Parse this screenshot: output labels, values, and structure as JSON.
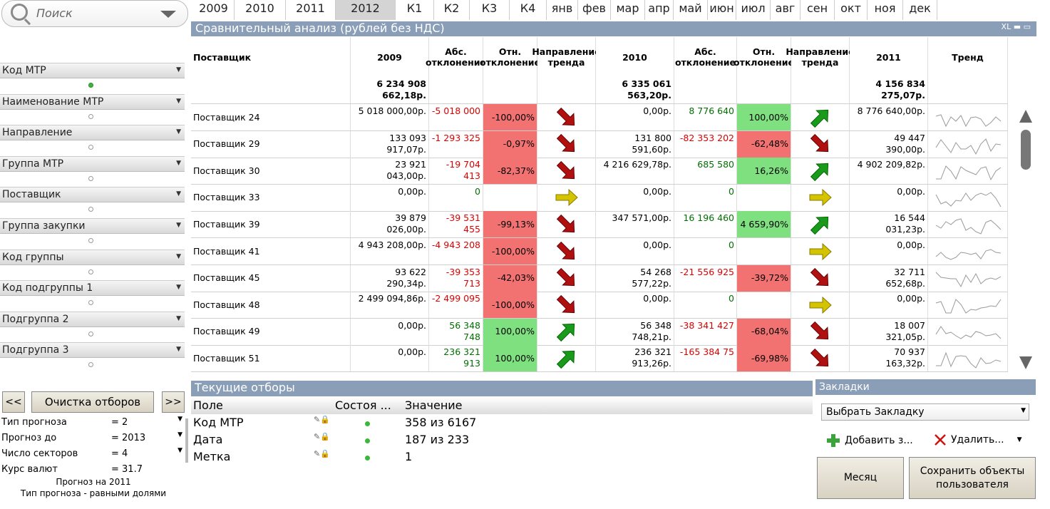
{
  "search": {
    "placeholder": "Поиск"
  },
  "filters": [
    {
      "label": "Код МТР",
      "active": true
    },
    {
      "label": "Наименование МТР",
      "active": false
    },
    {
      "label": "Направление",
      "active": false
    },
    {
      "label": "Группа МТР",
      "active": false
    },
    {
      "label": "Поставщик",
      "active": false
    },
    {
      "label": "Группа закупки",
      "active": false
    },
    {
      "label": "Код группы",
      "active": false
    },
    {
      "label": "Код подгруппы 1",
      "active": false
    },
    {
      "label": "Подгруппа 2",
      "active": false
    },
    {
      "label": "Подгруппа 3",
      "active": false
    }
  ],
  "nav": {
    "prev": "<<",
    "clear": "Очистка отборов",
    "next": ">>"
  },
  "forecast": [
    {
      "k": "Тип прогноза",
      "v": "= 2"
    },
    {
      "k": "Прогноз до",
      "v": "= 2013"
    },
    {
      "k": "Число секторов",
      "v": "= 4"
    },
    {
      "k": "Курс валют",
      "v": "= 31.7"
    }
  ],
  "forecast_note1": "Прогноз на 2011",
  "forecast_note2": "Тип прогноза - равными долями",
  "tabs": [
    "2009",
    "2010",
    "2011",
    "2012",
    "К1",
    "К2",
    "К3",
    "К4",
    "янв",
    "фев",
    "мар",
    "апр",
    "май",
    "июн",
    "июл",
    "авг",
    "сен",
    "окт",
    "ноя",
    "дек"
  ],
  "selected_tab": "2012",
  "table": {
    "title": "Сравнительный анализ (рублей без НДС)",
    "controls": "XL ▬ ▭",
    "headers": [
      "Поставщик",
      "2009",
      "Абс. отклонение",
      "Отн. отклонение",
      "Направление тренда",
      "2010",
      "Абс. отклонение",
      "Отн. отклонение",
      "Направление тренда",
      "2011",
      "Тренд"
    ],
    "totals": {
      "y2009": "6 234 908 662,18р.",
      "y2010": "6 335 061 563,20р.",
      "y2011": "4 156 834 275,07р."
    },
    "rows": [
      {
        "name": "Поставщик 24",
        "y2009": "5 018 000,00р.",
        "abs1": "-5 018 000",
        "rel1": "-100,00%",
        "dir1": "down",
        "y2010": "0,00р.",
        "abs2": "8 776 640",
        "rel2": "100,00%",
        "dir2": "up",
        "y2011": "8 776 640,00р."
      },
      {
        "name": "Поставщик 29",
        "y2009": "133 093 917,07р.",
        "abs1": "-1 293 325",
        "rel1": "-0,97%",
        "dir1": "down",
        "y2010": "131 800 591,60р.",
        "abs2": "-82 353 202",
        "rel2": "-62,48%",
        "dir2": "down",
        "y2011": "49 447 390,00р."
      },
      {
        "name": "Поставщик 30",
        "y2009": "23 921 043,00р.",
        "abs1": "-19 704 413",
        "rel1": "-82,37%",
        "dir1": "down",
        "y2010": "4 216 629,78р.",
        "abs2": "685 580",
        "rel2": "16,26%",
        "dir2": "up",
        "y2011": "4 902 209,82р."
      },
      {
        "name": "Поставщик 33",
        "y2009": "0,00р.",
        "abs1": "0",
        "rel1": "",
        "dir1": "flat",
        "y2010": "0,00р.",
        "abs2": "0",
        "rel2": "",
        "dir2": "flat",
        "y2011": "0,00р."
      },
      {
        "name": "Поставщик 39",
        "y2009": "39 879 026,00р.",
        "abs1": "-39 531 455",
        "rel1": "-99,13%",
        "dir1": "down",
        "y2010": "347 571,00р.",
        "abs2": "16 196 460",
        "rel2": "4 659,90%",
        "dir2": "up",
        "y2011": "16 544 031,23р."
      },
      {
        "name": "Поставщик 41",
        "y2009": "4 943 208,00р.",
        "abs1": "-4 943 208",
        "rel1": "-100,00%",
        "dir1": "down",
        "y2010": "0,00р.",
        "abs2": "0",
        "rel2": "",
        "dir2": "flat",
        "y2011": "0,00р."
      },
      {
        "name": "Поставщик 45",
        "y2009": "93 622 290,34р.",
        "abs1": "-39 353 713",
        "rel1": "-42,03%",
        "dir1": "down",
        "y2010": "54 268 577,22р.",
        "abs2": "-21 556 925",
        "rel2": "-39,72%",
        "dir2": "down",
        "y2011": "32 711 652,68р."
      },
      {
        "name": "Поставщик 48",
        "y2009": "2 499 094,86р.",
        "abs1": "-2 499 095",
        "rel1": "-100,00%",
        "dir1": "down",
        "y2010": "0,00р.",
        "abs2": "0",
        "rel2": "",
        "dir2": "flat",
        "y2011": "0,00р."
      },
      {
        "name": "Поставщик 49",
        "y2009": "0,00р.",
        "abs1": "56 348 748",
        "rel1": "100,00%",
        "dir1": "up",
        "y2010": "56 348 748,21р.",
        "abs2": "-38 341 427",
        "rel2": "-68,04%",
        "dir2": "down",
        "y2011": "18 007 321,05р."
      },
      {
        "name": "Поставщик 51",
        "y2009": "0,00р.",
        "abs1": "236 321 913",
        "rel1": "100,00%",
        "dir1": "up",
        "y2010": "236 321 913,26р.",
        "abs2": "-165 384 75",
        "rel2": "-69,98%",
        "dir2": "down",
        "y2011": "70 937 163,32р."
      }
    ]
  },
  "current": {
    "title": "Текущие отборы",
    "headers": [
      "Поле",
      "Состоя ...",
      "Значение"
    ],
    "rows": [
      {
        "field": "Код МТР",
        "value": "358 из 6167"
      },
      {
        "field": "Дата",
        "value": "187 из 233"
      },
      {
        "field": "Метка",
        "value": "1"
      }
    ]
  },
  "bookmarks": {
    "title": "Закладки",
    "select": "Выбрать Закладку",
    "add": "Добавить з...",
    "del": "Удалить...",
    "month": "Месяц",
    "save": "Сохранить объекты пользователя"
  },
  "colors": {
    "header": "#8a9eb7",
    "neg": "#f27171",
    "pos": "#7ee07e",
    "arrow_down": "#b01010",
    "arrow_up": "#1a9a1a",
    "arrow_flat": "#d4c400"
  }
}
